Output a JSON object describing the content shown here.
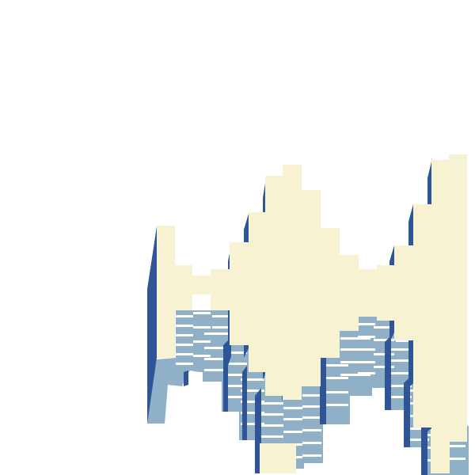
{
  "colors": {
    "background": "#ffffff",
    "face": "#f7f3d2",
    "edge": "#2f5597",
    "shadow": "#8fb0c6",
    "stripe": "#ffffff"
  }
}
